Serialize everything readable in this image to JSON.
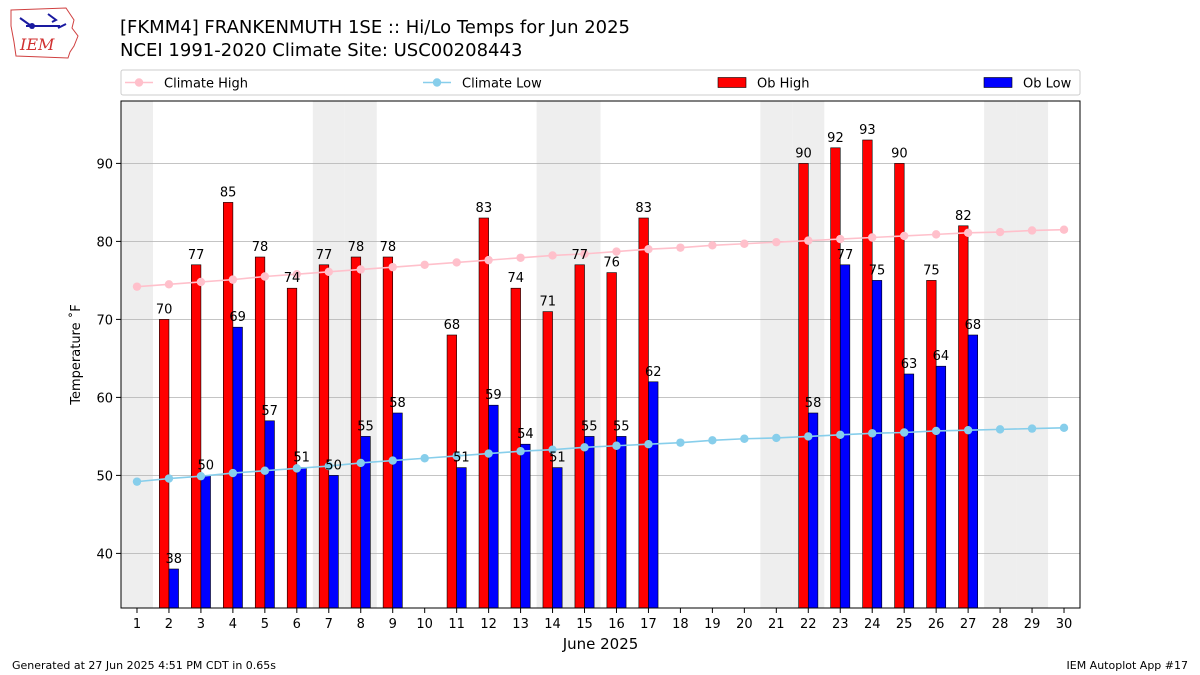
{
  "header": {
    "logo_text": "IEM",
    "title_line1": "[FKMM4] FRANKENMUTH 1SE :: Hi/Lo Temps for Jun 2025",
    "title_line2": "NCEI 1991-2020 Climate Site: USC00208443"
  },
  "footer": {
    "generated": "Generated at 27 Jun 2025 4:51 PM CDT in 0.65s",
    "app": "IEM Autoplot App #17"
  },
  "colors": {
    "ob_high": "#ff0000",
    "ob_low": "#0000ff",
    "climate_high": "#ffc0cb",
    "climate_low": "#87ceeb",
    "weekend_shade": "#eeeeee",
    "grid": "#b0b0b0"
  },
  "chart_data": {
    "type": "bar",
    "xlabel": "June 2025",
    "ylabel": "Temperature ˚F",
    "ylim": [
      33,
      98
    ],
    "yticks": [
      40,
      50,
      60,
      70,
      80,
      90
    ],
    "grid": "horizontal",
    "legend_placement": "top",
    "x": [
      1,
      2,
      3,
      4,
      5,
      6,
      7,
      8,
      9,
      10,
      11,
      12,
      13,
      14,
      15,
      16,
      17,
      18,
      19,
      20,
      21,
      22,
      23,
      24,
      25,
      26,
      27,
      28,
      29,
      30
    ],
    "shaded_days": [
      1,
      7,
      8,
      14,
      15,
      21,
      22,
      28,
      29
    ],
    "series": [
      {
        "name": "Climate High",
        "kind": "line",
        "values": [
          74.2,
          74.5,
          74.8,
          75.1,
          75.5,
          75.8,
          76.1,
          76.4,
          76.7,
          77.0,
          77.3,
          77.6,
          77.9,
          78.2,
          78.4,
          78.7,
          79.0,
          79.2,
          79.5,
          79.7,
          79.9,
          80.1,
          80.3,
          80.5,
          80.7,
          80.9,
          81.1,
          81.2,
          81.4,
          81.5
        ]
      },
      {
        "name": "Climate Low",
        "kind": "line",
        "values": [
          49.2,
          49.6,
          49.9,
          50.3,
          50.6,
          50.9,
          51.2,
          51.6,
          51.9,
          52.2,
          52.5,
          52.8,
          53.1,
          53.3,
          53.6,
          53.8,
          54.0,
          54.2,
          54.5,
          54.7,
          54.8,
          55.0,
          55.2,
          55.4,
          55.5,
          55.7,
          55.8,
          55.9,
          56.0,
          56.1
        ]
      },
      {
        "name": "Ob High",
        "kind": "bar",
        "values": [
          null,
          70,
          77,
          85,
          78,
          74,
          77,
          78,
          78,
          null,
          68,
          83,
          74,
          71,
          77,
          76,
          83,
          null,
          null,
          null,
          null,
          90,
          92,
          93,
          90,
          75,
          82,
          null,
          null,
          null
        ]
      },
      {
        "name": "Ob Low",
        "kind": "bar",
        "values": [
          null,
          38,
          50,
          69,
          57,
          51,
          50,
          55,
          58,
          null,
          51,
          59,
          54,
          51,
          55,
          55,
          62,
          null,
          null,
          null,
          null,
          58,
          77,
          75,
          63,
          64,
          68,
          null,
          null,
          null
        ]
      }
    ]
  }
}
